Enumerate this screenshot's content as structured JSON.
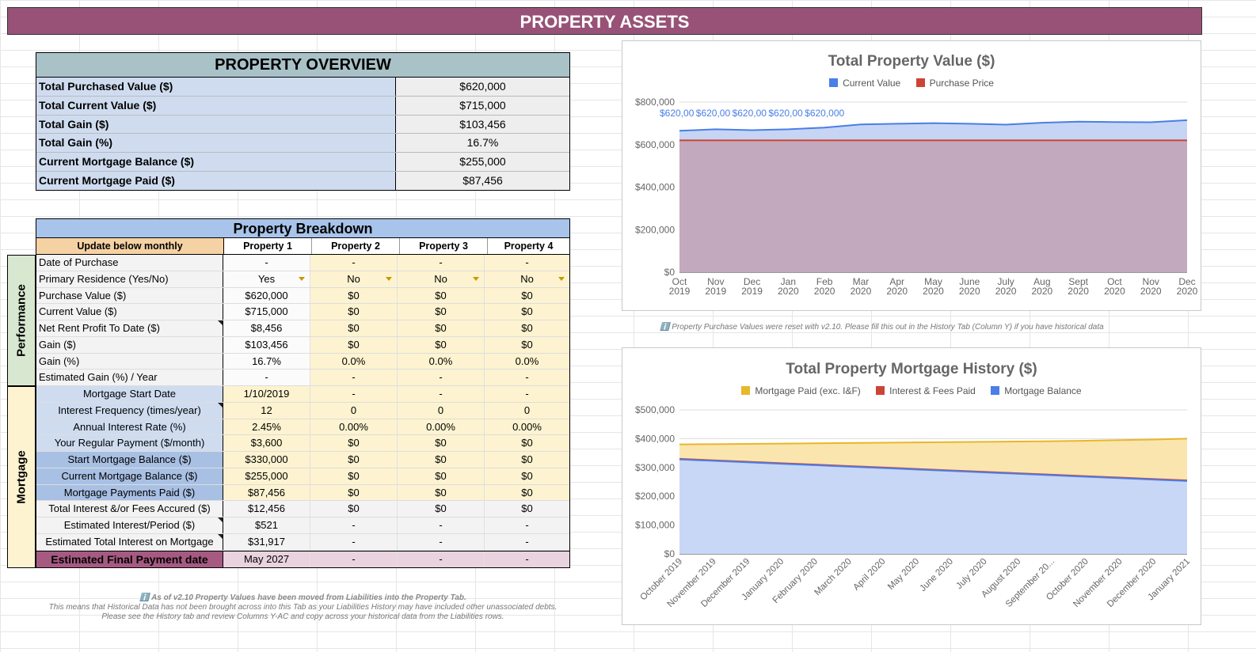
{
  "banner": "PROPERTY ASSETS",
  "overview": {
    "title": "PROPERTY OVERVIEW",
    "rows": [
      {
        "label": "Total Purchased Value ($)",
        "value": "$620,000"
      },
      {
        "label": "Total Current Value ($)",
        "value": "$715,000"
      },
      {
        "label": "Total Gain ($)",
        "value": "$103,456"
      },
      {
        "label": "Total Gain (%)",
        "value": "16.7%"
      },
      {
        "label": "Current Mortgage Balance ($)",
        "value": "$255,000"
      },
      {
        "label": "Current Mortgage Paid ($)",
        "value": "$87,456"
      }
    ]
  },
  "breakdown": {
    "title": "Property Breakdown",
    "header": [
      "Update below monthly",
      "Property 1",
      "Property 2",
      "Property 3",
      "Property 4"
    ],
    "side_labels": {
      "performance": "Performance",
      "mortgage": "Mortgage"
    },
    "performance_rows": [
      {
        "label": "Date of Purchase",
        "values": [
          "-",
          "-",
          "-",
          "-"
        ]
      },
      {
        "label": "Primary Residence (Yes/No)",
        "values": [
          "Yes",
          "No",
          "No",
          "No"
        ]
      },
      {
        "label": "Purchase Value ($)",
        "values": [
          "$620,000",
          "$0",
          "$0",
          "$0"
        ]
      },
      {
        "label": "Current Value ($)",
        "values": [
          "$715,000",
          "$0",
          "$0",
          "$0"
        ]
      },
      {
        "label": "Net Rent Profit To Date ($)",
        "values": [
          "$8,456",
          "$0",
          "$0",
          "$0"
        ]
      },
      {
        "label": "Gain ($)",
        "values": [
          "$103,456",
          "$0",
          "$0",
          "$0"
        ]
      },
      {
        "label": "Gain (%)",
        "values": [
          "16.7%",
          "0.0%",
          "0.0%",
          "0.0%"
        ]
      },
      {
        "label": "Estimated Gain (%) / Year",
        "values": [
          "-",
          "-",
          "-",
          "-"
        ]
      }
    ],
    "mortgage_rows": [
      {
        "label": "Mortgage Start Date",
        "values": [
          "1/10/2019",
          "-",
          "-",
          "-"
        ]
      },
      {
        "label": "Interest Frequency (times/year)",
        "values": [
          "12",
          "0",
          "0",
          "0"
        ]
      },
      {
        "label": "Annual Interest Rate (%)",
        "values": [
          "2.45%",
          "0.00%",
          "0.00%",
          "0.00%"
        ]
      },
      {
        "label": "Your Regular Payment ($/month)",
        "values": [
          "$3,600",
          "$0",
          "$0",
          "$0"
        ]
      },
      {
        "label": "Start Mortgage Balance ($)",
        "values": [
          "$330,000",
          "$0",
          "$0",
          "$0"
        ]
      },
      {
        "label": "Current Mortgage Balance ($)",
        "values": [
          "$255,000",
          "$0",
          "$0",
          "$0"
        ]
      },
      {
        "label": "Mortgage Payments Paid ($)",
        "values": [
          "$87,456",
          "$0",
          "$0",
          "$0"
        ]
      },
      {
        "label": "Total Interest &/or Fees Accured ($)",
        "values": [
          "$12,456",
          "$0",
          "$0",
          "$0"
        ]
      },
      {
        "label": "Estimated Interest/Period ($)",
        "values": [
          "$521",
          "-",
          "-",
          "-"
        ]
      },
      {
        "label": "Estimated Total Interest on Mortgage",
        "values": [
          "$31,917",
          "-",
          "-",
          "-"
        ]
      }
    ],
    "final_row": {
      "label": "Estimated Final Payment date",
      "values": [
        "May 2027",
        "-",
        "-",
        "-"
      ]
    }
  },
  "footnote": {
    "line1": "ℹ️ As of v2.10 Property Values have been moved from Liabilities into the Property Tab.",
    "line2": "This means that Historical Data has not been brought across into this Tab as your Liabilities History may have included other unassociated debts.",
    "line3": "Please see the History tab and review Columns Y-AC and copy across your historical data from the Liabilities rows."
  },
  "chart_note": "ℹ️ Property Purchase Values were reset with v2.10. Please fill this out in the History Tab (Column Y) if you have historical data",
  "chart_data": [
    {
      "type": "area",
      "title": "Total Property Value ($)",
      "categories": [
        "Oct 2019",
        "Nov 2019",
        "Dec 2019",
        "Jan 2020",
        "Feb 2020",
        "Mar 2020",
        "Apr 2020",
        "May 2020",
        "June 2020",
        "July 2020",
        "Aug 2020",
        "Sept 2020",
        "Oct 2020",
        "Nov 2020",
        "Dec 2020"
      ],
      "series": [
        {
          "name": "Current Value",
          "color": "#4a7ee8",
          "values": [
            665000,
            672000,
            668000,
            672000,
            680000,
            695000,
            698000,
            701000,
            698000,
            694000,
            703000,
            708000,
            706000,
            705000,
            715000
          ]
        },
        {
          "name": "Purchase Price",
          "color": "#cc4435",
          "values": [
            620000,
            620000,
            620000,
            620000,
            620000,
            620000,
            620000,
            620000,
            620000,
            620000,
            620000,
            620000,
            620000,
            620000,
            620000
          ]
        }
      ],
      "data_labels": [
        "$620,00",
        "$620,00",
        "$620,00",
        "$620,00",
        "$620,000"
      ],
      "y_ticks": [
        "$0",
        "$200,000",
        "$400,000",
        "$600,000",
        "$800,000"
      ],
      "ylim": [
        0,
        800000
      ],
      "legend": "top"
    },
    {
      "type": "area",
      "title": "Total Property Mortgage History ($)",
      "categories": [
        "October 2019",
        "November 2019",
        "December 2019",
        "January 2020",
        "February 2020",
        "March 2020",
        "April 2020",
        "May 2020",
        "June 2020",
        "July 2020",
        "August 2020",
        "September 20...",
        "October 2020",
        "November 2020",
        "December 2020",
        "January 2021"
      ],
      "series": [
        {
          "name": "Mortgage Paid (exc. I&F)",
          "color": "#e8b72a",
          "values": [
            380000,
            381000,
            382000,
            383000,
            384000,
            385000,
            386000,
            387000,
            388000,
            389000,
            390000,
            391000,
            393000,
            395000,
            397000,
            400000
          ]
        },
        {
          "name": "Interest & Fees Paid",
          "color": "#cc4435",
          "values": [
            330000,
            325000,
            320000,
            315000,
            310000,
            305000,
            300000,
            295000,
            290000,
            285000,
            280000,
            275000,
            270000,
            265000,
            260000,
            255000
          ]
        },
        {
          "name": "Mortgage Balance",
          "color": "#4a7ee8",
          "values": [
            328000,
            323000,
            318000,
            313000,
            308000,
            303000,
            298000,
            293000,
            288000,
            283000,
            278000,
            273000,
            268000,
            263000,
            258000,
            253000
          ]
        }
      ],
      "y_ticks": [
        "$0",
        "$100,000",
        "$200,000",
        "$300,000",
        "$400,000",
        "$500,000"
      ],
      "ylim": [
        0,
        500000
      ],
      "legend": "top"
    }
  ]
}
